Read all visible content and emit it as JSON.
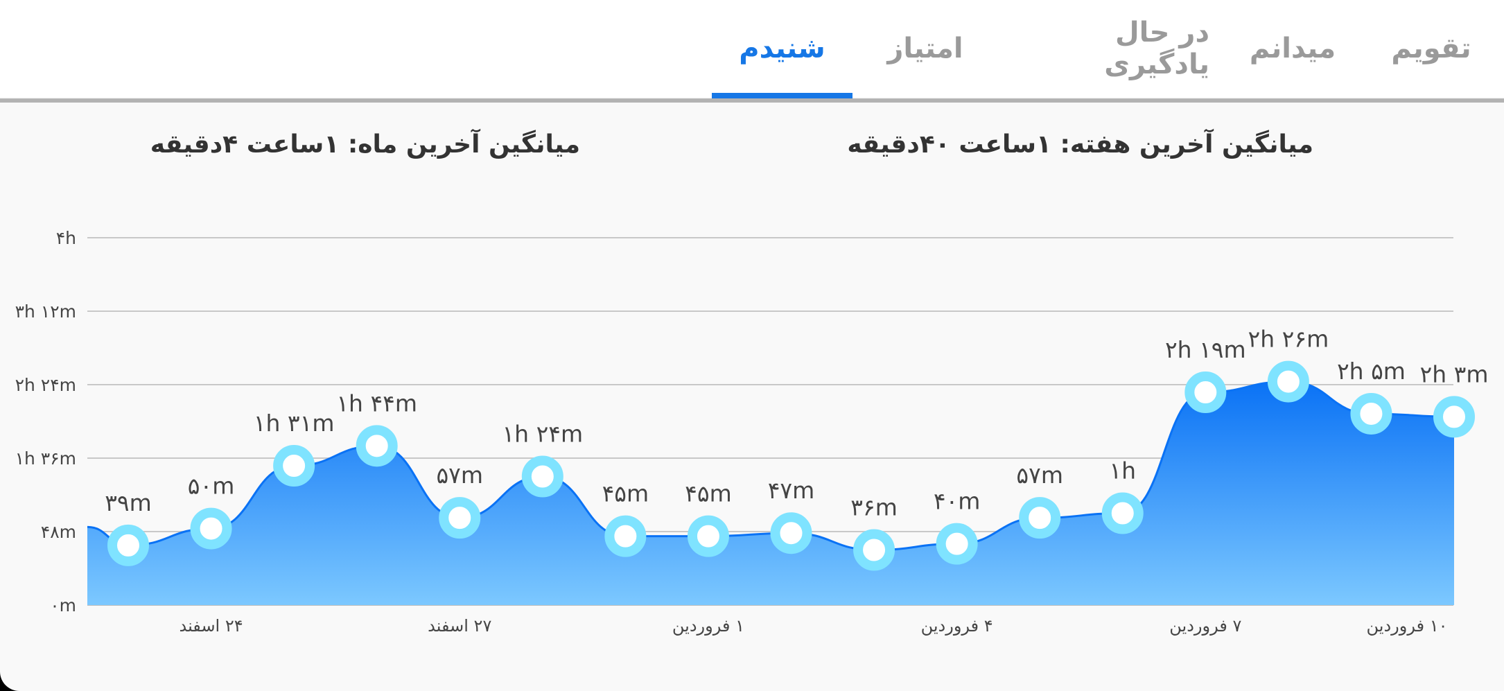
{
  "tabs": [
    {
      "label": "تقویم",
      "active": false
    },
    {
      "label": "میدانم",
      "active": false
    },
    {
      "label": "در حال یادگیری",
      "active": false
    },
    {
      "label": "امتیاز",
      "active": false
    },
    {
      "label": "شنیدم",
      "active": true
    }
  ],
  "summary": {
    "week": "میانگین آخرین هفته: ۱ساعت  ۴۰دقیقه",
    "month": "میانگین آخرین ماه: ۱ساعت  ۴دقیقه"
  },
  "colors": {
    "accent": "#1677e6",
    "area_top": "#0a72f5",
    "area_bottom": "#7cc8ff",
    "marker_ring": "#7fe3ff",
    "tab_inactive": "#9a9a9a"
  },
  "chart_data": {
    "type": "area",
    "title": "",
    "xlabel": "",
    "ylabel": "",
    "y_unit": "minutes",
    "ylim": [
      0,
      240
    ],
    "y_ticks": [
      {
        "value": 0,
        "label": "۰m"
      },
      {
        "value": 48,
        "label": "۴۸m"
      },
      {
        "value": 96,
        "label": "۱h ۳۶m"
      },
      {
        "value": 144,
        "label": "۲h ۲۴m"
      },
      {
        "value": 192,
        "label": "۳h ۱۲m"
      },
      {
        "value": 240,
        "label": "۴h"
      }
    ],
    "x_tick_labels": [
      {
        "index": 1,
        "label": "۲۴ اسفند"
      },
      {
        "index": 4,
        "label": "۲۷ اسفند"
      },
      {
        "index": 7,
        "label": "۱ فروردین"
      },
      {
        "index": 10,
        "label": "۴ فروردین"
      },
      {
        "index": 13,
        "label": "۷ فروردین"
      },
      {
        "index": 16,
        "label": "۱۰ فروردین"
      }
    ],
    "grid": true,
    "series": [
      {
        "values": [
          39,
          50,
          91,
          104,
          57,
          84,
          45,
          45,
          47,
          36,
          40,
          57,
          60,
          139,
          146,
          125,
          123
        ],
        "labels": [
          "۳۹m",
          "۵۰m",
          "۱h ۳۱m",
          "۱h ۴۴m",
          "۵۷m",
          "۱h ۲۴m",
          "۴۵m",
          "۴۵m",
          "۴۷m",
          "۳۶m",
          "۴۰m",
          "۵۷m",
          "۱h",
          "۲h ۱۹m",
          "۲h ۲۶m",
          "۲h ۵m",
          "۲h ۳m"
        ]
      }
    ]
  }
}
